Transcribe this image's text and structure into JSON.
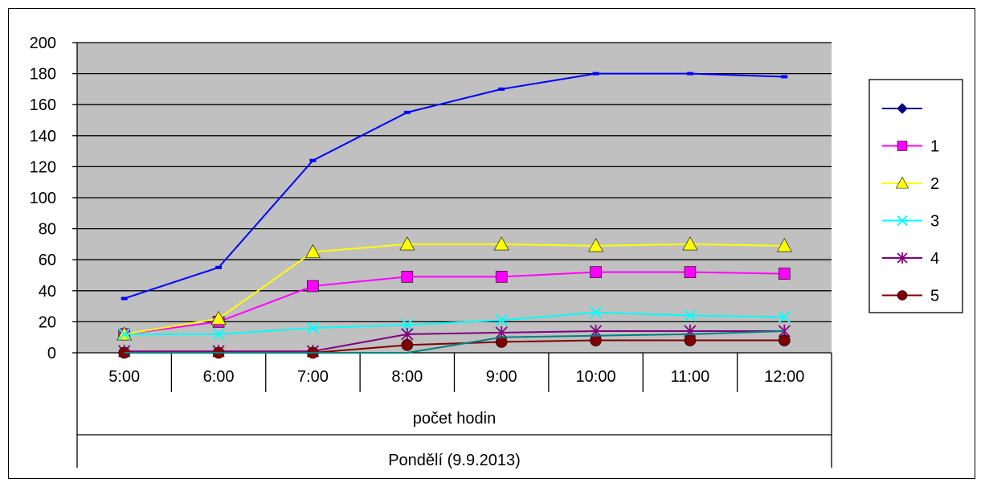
{
  "chart_data": {
    "type": "line",
    "title": "",
    "ylim": [
      0,
      200
    ],
    "yticks": [
      "0",
      "20",
      "40",
      "60",
      "80",
      "100",
      "120",
      "140",
      "160",
      "180",
      "200"
    ],
    "categories": [
      "5:00",
      "6:00",
      "7:00",
      "8:00",
      "9:00",
      "10:00",
      "11:00",
      "12:00"
    ],
    "xlabel": "počet hodin",
    "group_label": "Pondělí (9.9.2013)",
    "plot_background": "#c0c0c0",
    "grid": true,
    "legend_position": "right",
    "series": [
      {
        "name": "",
        "color": "#0000ff",
        "legend_color": "#000080",
        "marker": "diamond",
        "values": [
          35,
          55,
          124,
          155,
          170,
          180,
          180,
          178
        ]
      },
      {
        "name": "1",
        "color": "#ff00ff",
        "marker": "square",
        "values": [
          12,
          20,
          43,
          49,
          49,
          52,
          52,
          51
        ]
      },
      {
        "name": "2",
        "color": "#ffff00",
        "marker": "triangle",
        "values": [
          12,
          22,
          65,
          70,
          70,
          69,
          70,
          69
        ]
      },
      {
        "name": "3",
        "color": "#00ffff",
        "marker": "x",
        "values": [
          12,
          12,
          16,
          18,
          21,
          26,
          24,
          23
        ]
      },
      {
        "name": "4",
        "color": "#800080",
        "marker": "star",
        "values": [
          1,
          1,
          1,
          12,
          13,
          14,
          14,
          14
        ]
      },
      {
        "name": "5",
        "color": "#800000",
        "marker": "circle",
        "values": [
          0,
          0,
          0,
          5,
          7,
          8,
          8,
          8
        ]
      },
      {
        "name": "",
        "color": "#008080",
        "marker": "none",
        "legend": false,
        "values": [
          0,
          0,
          0,
          0,
          10,
          11,
          12,
          14
        ]
      }
    ]
  }
}
